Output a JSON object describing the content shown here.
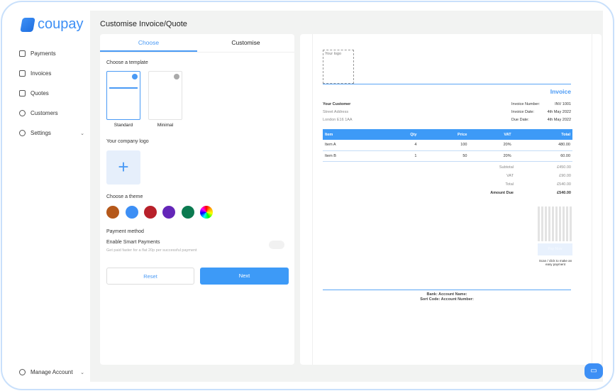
{
  "brand": "coupay",
  "sidebar": {
    "items": [
      {
        "label": "Payments"
      },
      {
        "label": "Invoices"
      },
      {
        "label": "Quotes"
      },
      {
        "label": "Customers"
      },
      {
        "label": "Settings"
      }
    ],
    "account": "Manage Account"
  },
  "page_title": "Customise Invoice/Quote",
  "tabs": [
    "Choose",
    "Customise"
  ],
  "choose": {
    "template_label": "Choose a template",
    "templates": [
      "Standard",
      "Minimal"
    ],
    "logo_label": "Your company logo",
    "theme_label": "Choose a theme",
    "themes": [
      "#b5581a",
      "#3d8ff5",
      "#b8202a",
      "#6426b8",
      "#0b7a50"
    ],
    "payment_label": "Payment method",
    "smart_label": "Enable Smart Payments",
    "smart_desc": "Get paid faster for a flat 20p per successful payment",
    "smart_enabled": false,
    "reset": "Reset",
    "next": "Next"
  },
  "invoice": {
    "logo": "Your logo",
    "title": "Invoice",
    "customer": "Your Customer",
    "street": "Street Address",
    "city": "London E16 1AA",
    "meta": [
      [
        "Invoice Number:",
        "INV 1001"
      ],
      [
        "Invoice Date:",
        "4th May 2022"
      ],
      [
        "Due Date:",
        "4th May 2022"
      ]
    ],
    "headers": [
      "Item",
      "Qty",
      "Price",
      "VAT",
      "Total"
    ],
    "rows": [
      [
        "Item A",
        "4",
        "100",
        "20%",
        "480.00"
      ],
      [
        "Item B",
        "1",
        "50",
        "20%",
        "60.00"
      ]
    ],
    "totals": [
      [
        "Subtotal",
        "£450.00"
      ],
      [
        "VAT",
        "£90.00"
      ],
      [
        "Total",
        "£540.00"
      ]
    ],
    "due_label": "Amount Due",
    "due": "£540.00",
    "pay_button": "Pay Now",
    "scan": "Scan / click to make an easy payment",
    "bank1": "Bank:   Account Name:",
    "bank2": "Sort Code:   Account Number:"
  }
}
